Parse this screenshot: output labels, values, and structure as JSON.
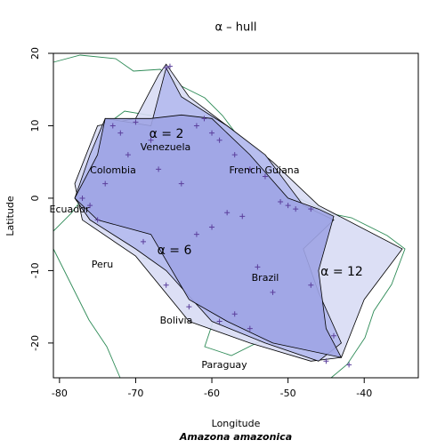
{
  "chart_data": {
    "type": "alpha-hull-map",
    "title": "α – hull",
    "x_label": "Longitude",
    "y_label": "Latitude",
    "subtitle": "Amazona amazonica",
    "xlim": [
      -80.8,
      -32.9
    ],
    "ylim": [
      -24.8,
      20
    ],
    "xticks": [
      -80,
      -70,
      -60,
      -50,
      -40
    ],
    "yticks": [
      -20,
      -10,
      0,
      10,
      20
    ],
    "hulls": [
      {
        "name": "α = 12",
        "color": "#d8dcf4",
        "lon": [
          -66,
          -63,
          -58,
          -52,
          -46,
          -35,
          -40,
          -43,
          -47,
          -55,
          -63,
          -70,
          -77,
          -78,
          -75,
          -70,
          -67
        ],
        "lat": [
          18.5,
          14,
          10,
          5,
          -1,
          -7,
          -14,
          -22,
          -22.5,
          -20,
          -17,
          -8,
          -3,
          2,
          10,
          11,
          17
        ]
      },
      {
        "name": "α = 6",
        "color": "#b4baee",
        "lon": [
          -66,
          -64,
          -58,
          -53,
          -48,
          -44,
          -48,
          -46,
          -43,
          -46,
          -53,
          -60,
          -66,
          -70,
          -76,
          -78,
          -76,
          -74,
          -68
        ],
        "lat": [
          18,
          14,
          10,
          6,
          -1,
          -3,
          -7,
          -13,
          -20,
          -22.5,
          -20,
          -17,
          -10,
          -7,
          -3,
          0,
          6,
          11,
          10
        ]
      },
      {
        "name": "α = 2",
        "color": "#9ea4e4",
        "lon": [
          -74,
          -68,
          -64,
          -60,
          -55,
          -50,
          -46,
          -44,
          -46,
          -45,
          -43,
          -52,
          -58,
          -63,
          -68,
          -75,
          -78,
          -75
        ],
        "lat": [
          11,
          11,
          11.5,
          11,
          6,
          0,
          -1.5,
          -2.5,
          -10,
          -18,
          -22,
          -20,
          -17,
          -14,
          -5,
          -3,
          0,
          6
        ]
      }
    ],
    "points": {
      "color": "#5b3f9c",
      "lon": [
        -66,
        -65.5,
        -73,
        -72,
        -70,
        -68,
        -62,
        -61,
        -60,
        -59,
        -57,
        -55,
        -53,
        -51,
        -49,
        -76,
        -77,
        -75,
        -74,
        -71,
        -67,
        -64,
        -58,
        -56,
        -50,
        -47,
        -60,
        -62,
        -63,
        -55,
        -54,
        -52,
        -47,
        -45,
        -42,
        -44,
        -57,
        -59,
        -66,
        -69
      ],
      "lat": [
        18,
        18.2,
        10,
        9,
        10.5,
        8,
        10,
        11,
        9,
        8,
        6,
        4,
        3,
        -0.5,
        -1.5,
        -1,
        0,
        -3,
        2,
        6,
        4,
        2,
        -2,
        -2.5,
        -1,
        -1.5,
        -4,
        -5,
        -15,
        -18,
        -9.5,
        -13,
        -12,
        -22.5,
        -23,
        -19,
        -16,
        -17,
        -12,
        -6
      ]
    },
    "place_labels": [
      "Venezuela",
      "Colombia",
      "French Guiana",
      "Ecuador",
      "Peru",
      "Brazil",
      "Bolivia",
      "Paraguay"
    ]
  }
}
